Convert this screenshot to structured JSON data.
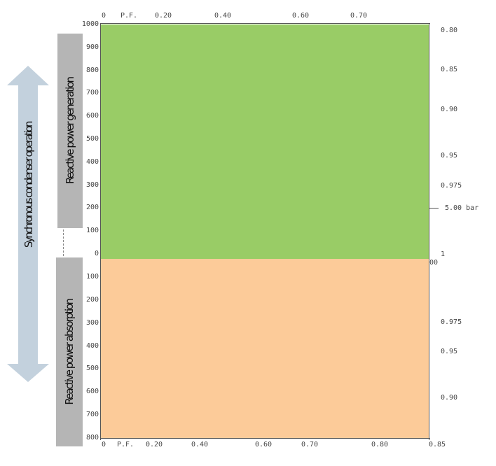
{
  "top_axis": {
    "ticks": [
      "0",
      "P.F.",
      "0.20",
      "0.40",
      "0.60",
      "0.70"
    ]
  },
  "bottom_axis": {
    "ticks": [
      "0",
      "P.F.",
      "0.20",
      "0.40",
      "0.60",
      "0.70",
      "0.80",
      "0.85"
    ]
  },
  "left_axis_generating": {
    "ticks": [
      "1000",
      "900",
      "800",
      "700",
      "600",
      "500",
      "400",
      "300",
      "200",
      "100",
      "0"
    ]
  },
  "left_axis_absorbing": {
    "ticks": [
      "100",
      "200",
      "300",
      "400",
      "500",
      "600",
      "700",
      "800"
    ]
  },
  "right_axis_generating": {
    "ticks": [
      "0.80",
      "0.85",
      "0.90",
      "0.95",
      "0.975",
      "1"
    ]
  },
  "right_axis_absorbing": {
    "ticks": [
      "0.975",
      "0.95",
      "0.90"
    ]
  },
  "marker": {
    "label": "5.00 bar"
  },
  "stray_label": "00",
  "labels": {
    "generating_box": "Reactive power generation",
    "absorbing_box": "Reactive power absorption",
    "arrow": "Synchronous condenser operation"
  },
  "colors": {
    "generating_zone": "#99cc66",
    "absorbing_zone": "#fccb99",
    "side_box": "#b5b5b5",
    "arrow": "#c3d1dd"
  }
}
